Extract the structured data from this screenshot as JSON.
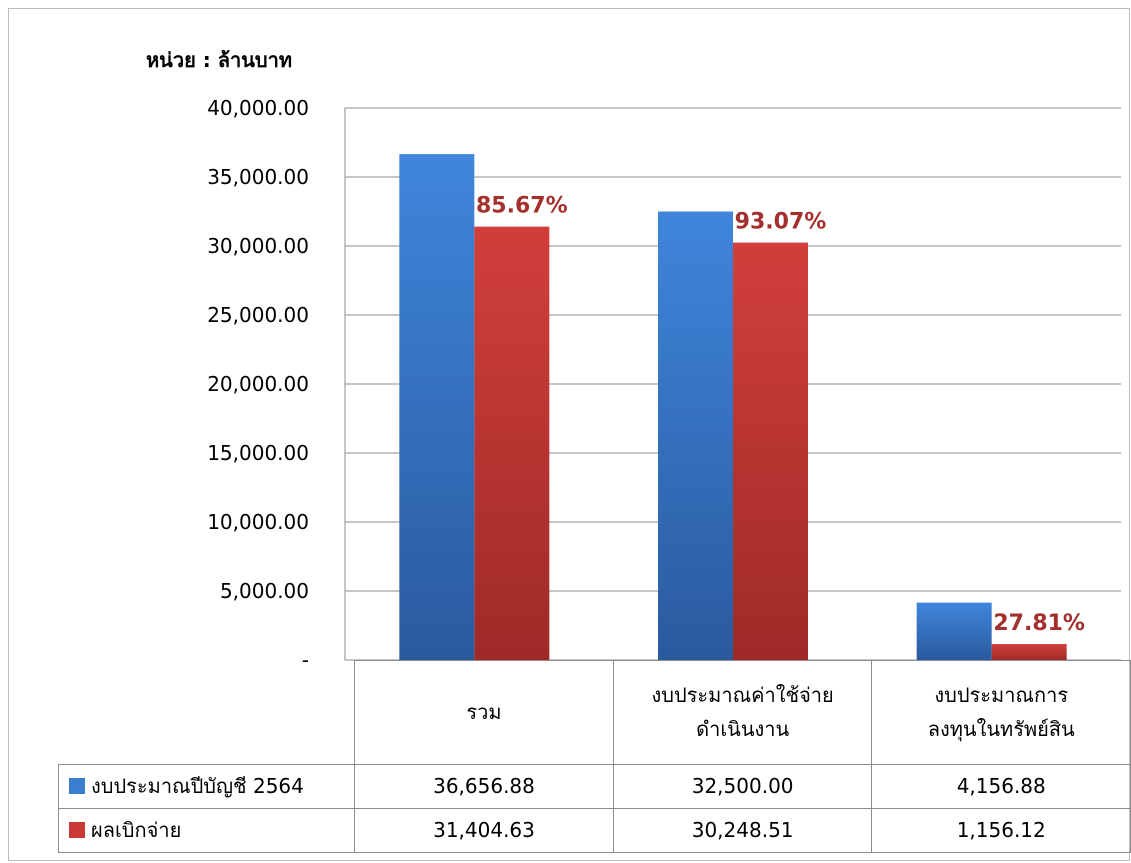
{
  "unit_label": "หน่วย : ล้านบาท",
  "colors": {
    "budget": "#3b7dd0",
    "disbursed": "#c93a37",
    "pct_label": "#a3302d",
    "grid": "#8c8c8c"
  },
  "chart_data": {
    "type": "bar",
    "title": "",
    "xlabel": "",
    "ylabel": "หน่วย : ล้านบาท",
    "ylim": [
      0,
      40000
    ],
    "yticks": [
      0,
      5000,
      10000,
      15000,
      20000,
      25000,
      30000,
      35000,
      40000
    ],
    "ytick_labels": [
      "-",
      "5,000.00",
      "10,000.00",
      "15,000.00",
      "20,000.00",
      "25,000.00",
      "30,000.00",
      "35,000.00",
      "40,000.00"
    ],
    "grid": true,
    "legend_placement": "data-table",
    "categories": [
      [
        "รวม"
      ],
      [
        "งบประมาณค่าใช้จ่าย",
        "ดำเนินงาน"
      ],
      [
        "งบประมาณการ",
        "ลงทุนในทรัพย์สิน"
      ]
    ],
    "series": [
      {
        "name": "งบประมาณปีบัญชี 2564",
        "values": [
          36656.88,
          32500.0,
          4156.88
        ],
        "value_labels": [
          "36,656.88",
          "32,500.00",
          "4,156.88"
        ]
      },
      {
        "name": "ผลเบิกจ่าย",
        "values": [
          31404.63,
          30248.51,
          1156.12
        ],
        "value_labels": [
          "31,404.63",
          "30,248.51",
          "1,156.12"
        ]
      }
    ],
    "annotations": [
      "85.67%",
      "93.07%",
      "27.81%"
    ]
  }
}
